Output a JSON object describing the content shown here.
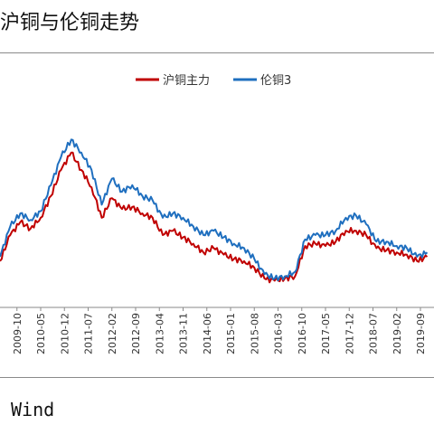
{
  "header": {
    "title": "沪铜与伦铜走势"
  },
  "footer": {
    "source": "Wind"
  },
  "colors": {
    "shfe": "#c00000",
    "lme": "#1f6fbf",
    "axis": "#8a8a8a"
  },
  "chart_data": {
    "type": "line",
    "title": "沪铜与伦铜走势",
    "legend_position": "top-center",
    "grid": false,
    "xlabel": "",
    "ylabel": "",
    "x_tick_labels": [
      "2009-10",
      "2010-05",
      "2010-12",
      "2011-07",
      "2012-02",
      "2012-09",
      "2013-04",
      "2013-11",
      "2014-06",
      "2015-01",
      "2015-08",
      "2016-03",
      "2016-10",
      "2017-05",
      "2017-12",
      "2018-07",
      "2019-02",
      "2019-09"
    ],
    "x_range": [
      "2009-05",
      "2020-01"
    ],
    "y_range": [
      0,
      100
    ],
    "series": [
      {
        "name": "沪铜主力",
        "x": [
          "2009-05",
          "2009-08",
          "2009-11",
          "2010-02",
          "2010-05",
          "2010-08",
          "2010-11",
          "2011-02",
          "2011-05",
          "2011-08",
          "2011-11",
          "2012-02",
          "2012-05",
          "2012-08",
          "2012-11",
          "2013-02",
          "2013-05",
          "2013-08",
          "2013-11",
          "2014-02",
          "2014-05",
          "2014-08",
          "2014-11",
          "2015-02",
          "2015-05",
          "2015-08",
          "2015-11",
          "2016-02",
          "2016-05",
          "2016-08",
          "2016-11",
          "2017-02",
          "2017-05",
          "2017-08",
          "2017-11",
          "2018-02",
          "2018-05",
          "2018-08",
          "2018-11",
          "2019-02",
          "2019-05",
          "2019-08",
          "2019-11"
        ],
        "values": [
          18,
          30,
          36,
          33,
          38,
          48,
          60,
          68,
          60,
          52,
          38,
          47,
          42,
          43,
          40,
          38,
          30,
          32,
          29,
          26,
          22,
          24,
          21,
          19,
          18,
          15,
          10,
          9,
          10,
          11,
          25,
          26,
          25,
          27,
          32,
          32,
          30,
          24,
          23,
          22,
          21,
          18,
          20
        ]
      },
      {
        "name": "伦铜3",
        "x": [
          "2009-05",
          "2009-08",
          "2009-11",
          "2010-02",
          "2010-05",
          "2010-08",
          "2010-11",
          "2011-02",
          "2011-05",
          "2011-08",
          "2011-11",
          "2012-02",
          "2012-05",
          "2012-08",
          "2012-11",
          "2013-02",
          "2013-05",
          "2013-08",
          "2013-11",
          "2014-02",
          "2014-05",
          "2014-08",
          "2014-11",
          "2015-02",
          "2015-05",
          "2015-08",
          "2015-11",
          "2016-02",
          "2016-05",
          "2016-08",
          "2016-11",
          "2017-02",
          "2017-05",
          "2017-08",
          "2017-11",
          "2018-02",
          "2018-05",
          "2018-08",
          "2018-11",
          "2019-02",
          "2019-05",
          "2019-08",
          "2019-11"
        ],
        "values": [
          20,
          34,
          40,
          37,
          41,
          53,
          66,
          74,
          68,
          60,
          44,
          56,
          50,
          53,
          48,
          46,
          38,
          40,
          38,
          34,
          30,
          32,
          29,
          26,
          24,
          19,
          12,
          10,
          11,
          13,
          28,
          30,
          30,
          32,
          38,
          39,
          35,
          27,
          27,
          25,
          24,
          20,
          22
        ]
      }
    ]
  }
}
